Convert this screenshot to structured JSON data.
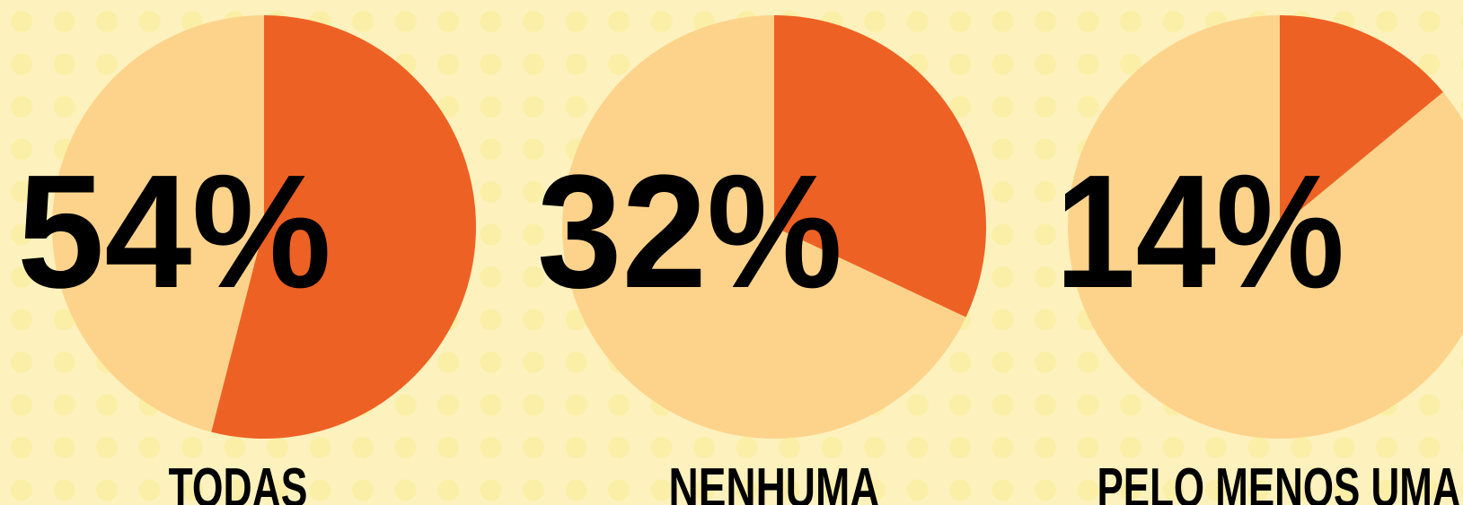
{
  "chart_data": [
    {
      "type": "pie",
      "categories": [
        "TODAS"
      ],
      "values": [
        54
      ],
      "value_labels": [
        "54%"
      ],
      "color": "#ee6124",
      "rest_color": "#fdd38b"
    },
    {
      "type": "pie",
      "categories": [
        "NENHUMA"
      ],
      "values": [
        32
      ],
      "value_labels": [
        "32%"
      ],
      "color": "#ee6124",
      "rest_color": "#fdd38b"
    },
    {
      "type": "pie",
      "categories": [
        "PELO MENOS UMA"
      ],
      "values": [
        14
      ],
      "value_labels": [
        "14%"
      ],
      "color": "#ee6124",
      "rest_color": "#fdd38b"
    }
  ]
}
